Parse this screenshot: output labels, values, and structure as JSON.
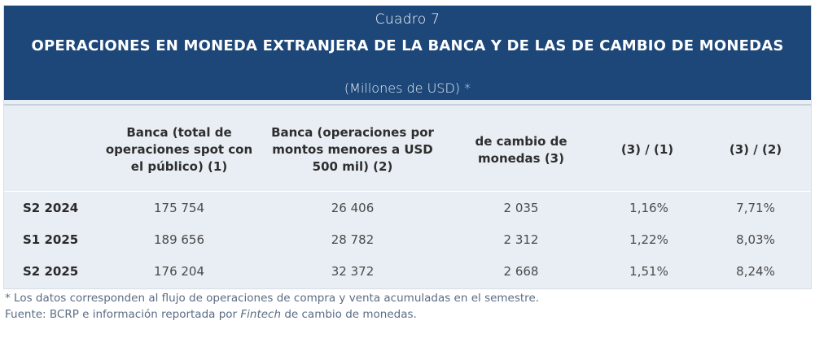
{
  "header": {
    "cuadro": "Cuadro 7",
    "title": "OPERACIONES EN MONEDA EXTRANJERA DE LA BANCA Y DE LAS  DE CAMBIO DE MONEDAS",
    "units": "(Millones de USD) *"
  },
  "columns": [
    {
      "label": "Banca (total de operaciones spot con el público) (1)"
    },
    {
      "label": "Banca (operaciones por montos menores a USD 500 mil) (2)"
    },
    {
      "label": "de cambio de monedas (3)"
    },
    {
      "label": "(3) / (1)"
    },
    {
      "label": "(3) / (2)"
    }
  ],
  "rows": [
    {
      "label": "S2 2024",
      "values": [
        "175 754",
        "26 406",
        "2 035",
        "1,16%",
        "7,71%"
      ]
    },
    {
      "label": "S1 2025",
      "values": [
        "189 656",
        "28 782",
        "2 312",
        "1,22%",
        "8,03%"
      ]
    },
    {
      "label": "S2 2025",
      "values": [
        "176 204",
        "32 372",
        "2 668",
        "1,51%",
        "8,24%"
      ]
    }
  ],
  "footnotes": {
    "note": "* Los datos corresponden al flujo de operaciones de compra y venta acumuladas en el semestre.",
    "source_prefix": "Fuente: BCRP e información reportada por ",
    "source_italic": "Fintech",
    "source_suffix": " de cambio de monedas."
  }
}
